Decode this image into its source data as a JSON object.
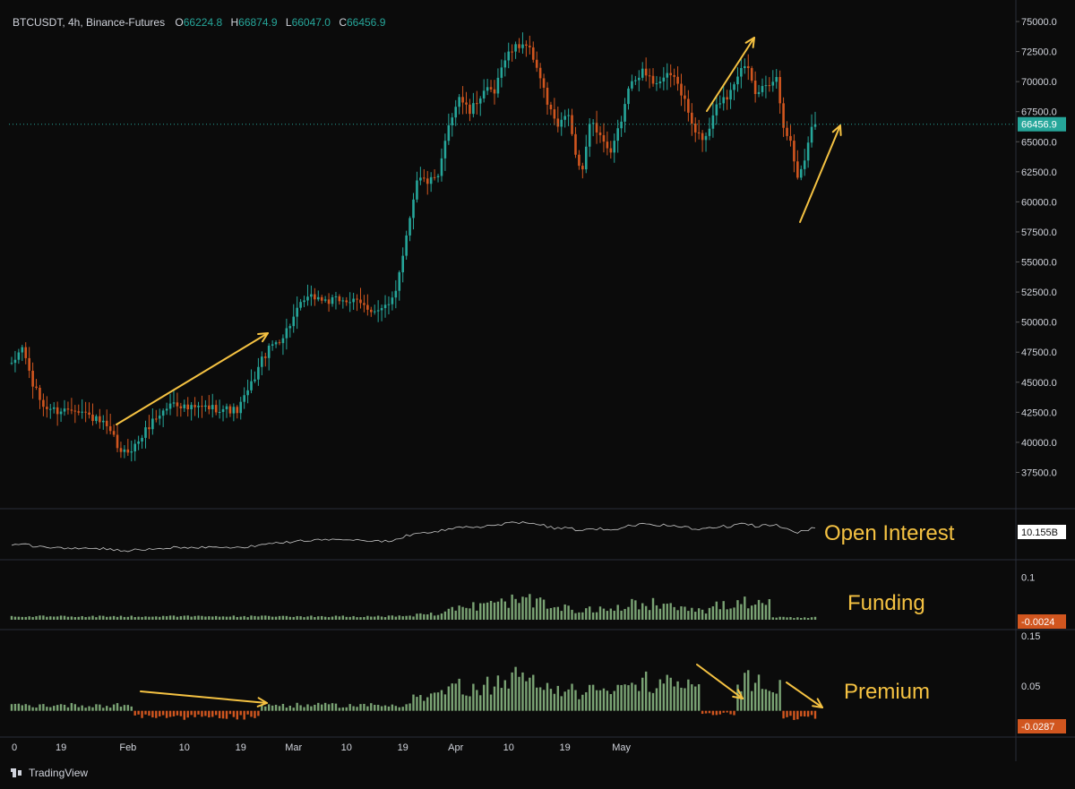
{
  "header": {
    "symbol": "BTCUSDT, 4h, Binance-Futures",
    "o_label": "O",
    "o_value": "66224.8",
    "h_label": "H",
    "h_value": "66874.9",
    "l_label": "L",
    "l_value": "66047.0",
    "c_label": "C",
    "c_value": "66456.9"
  },
  "footer": {
    "brand": "TradingView"
  },
  "colors": {
    "background": "#0b0b0b",
    "up": "#26a69a",
    "down": "#d1561f",
    "histogram_pos": "#7aa374",
    "histogram_neg": "#d1561f",
    "annotation": "#f5c242",
    "axis_text": "#d1d4dc",
    "divider": "#2a2e39",
    "oi_line": "#c8c8c8"
  },
  "chart_data": [
    {
      "type": "candlestick",
      "panel": "price",
      "x_ticks": [
        "0",
        "19",
        "Feb",
        "10",
        "19",
        "Mar",
        "10",
        "19",
        "Apr",
        "10",
        "19",
        "May"
      ],
      "y_ticks": [
        "75000.0",
        "72500.0",
        "70000.0",
        "67500.0",
        "65000.0",
        "62500.0",
        "60000.0",
        "57500.0",
        "55000.0",
        "52500.0",
        "50000.0",
        "47500.0",
        "45000.0",
        "42500.0",
        "40000.0",
        "37500.0"
      ],
      "ylim": [
        35300,
        75300
      ],
      "last_price": "66456.9",
      "path": [
        [
          0,
          46300
        ],
        [
          3,
          48000
        ],
        [
          6,
          44800
        ],
        [
          9,
          43000
        ],
        [
          13,
          42600
        ],
        [
          18,
          42900
        ],
        [
          22,
          42200
        ],
        [
          26,
          41500
        ],
        [
          29,
          40300
        ],
        [
          31,
          39000
        ],
        [
          35,
          39700
        ],
        [
          40,
          41800
        ],
        [
          46,
          43400
        ],
        [
          50,
          42800
        ],
        [
          55,
          42900
        ],
        [
          60,
          42800
        ],
        [
          64,
          42600
        ],
        [
          68,
          44800
        ],
        [
          71,
          46900
        ],
        [
          74,
          48100
        ],
        [
          77,
          48800
        ],
        [
          80,
          50400
        ],
        [
          83,
          51800
        ],
        [
          86,
          52100
        ],
        [
          90,
          51700
        ],
        [
          94,
          51900
        ],
        [
          98,
          51600
        ],
        [
          101,
          51200
        ],
        [
          104,
          50900
        ],
        [
          107,
          51300
        ],
        [
          109,
          52800
        ],
        [
          112,
          57200
        ],
        [
          115,
          62000
        ],
        [
          118,
          61700
        ],
        [
          121,
          61900
        ],
        [
          124,
          66500
        ],
        [
          127,
          68800
        ],
        [
          130,
          67400
        ],
        [
          134,
          69300
        ],
        [
          137,
          69000
        ],
        [
          140,
          72100
        ],
        [
          143,
          72900
        ],
        [
          146,
          73200
        ],
        [
          149,
          71300
        ],
        [
          152,
          68200
        ],
        [
          155,
          66200
        ],
        [
          158,
          67300
        ],
        [
          160,
          63800
        ],
        [
          162,
          62400
        ],
        [
          164,
          66800
        ],
        [
          167,
          65600
        ],
        [
          170,
          63800
        ],
        [
          173,
          66900
        ],
        [
          176,
          70300
        ],
        [
          179,
          70800
        ],
        [
          182,
          70000
        ],
        [
          185,
          70300
        ],
        [
          188,
          70500
        ],
        [
          191,
          68300
        ],
        [
          194,
          65600
        ],
        [
          197,
          65300
        ],
        [
          200,
          68300
        ],
        [
          203,
          68700
        ],
        [
          205,
          70100
        ],
        [
          207,
          71400
        ],
        [
          209,
          70800
        ],
        [
          211,
          68900
        ],
        [
          214,
          69800
        ],
        [
          217,
          70300
        ],
        [
          219,
          66500
        ],
        [
          221,
          64900
        ],
        [
          223,
          62000
        ],
        [
          225,
          63600
        ],
        [
          226,
          64800
        ],
        [
          227,
          66300
        ],
        [
          228,
          66457
        ]
      ],
      "annotation_arrows": 4
    },
    {
      "type": "line",
      "panel": "Open Interest",
      "label": "Open Interest",
      "last_value": "10.155B"
    },
    {
      "type": "histogram",
      "panel": "Funding",
      "label": "Funding",
      "y_ticks": [
        "0.1"
      ],
      "ylim": [
        0,
        0.13
      ],
      "last_value": "-0.0024"
    },
    {
      "type": "histogram",
      "panel": "Premium",
      "label": "Premium",
      "y_ticks": [
        "0.15",
        "0.05"
      ],
      "ylim": [
        -0.04,
        0.15
      ],
      "last_value": "-0.0287"
    }
  ]
}
